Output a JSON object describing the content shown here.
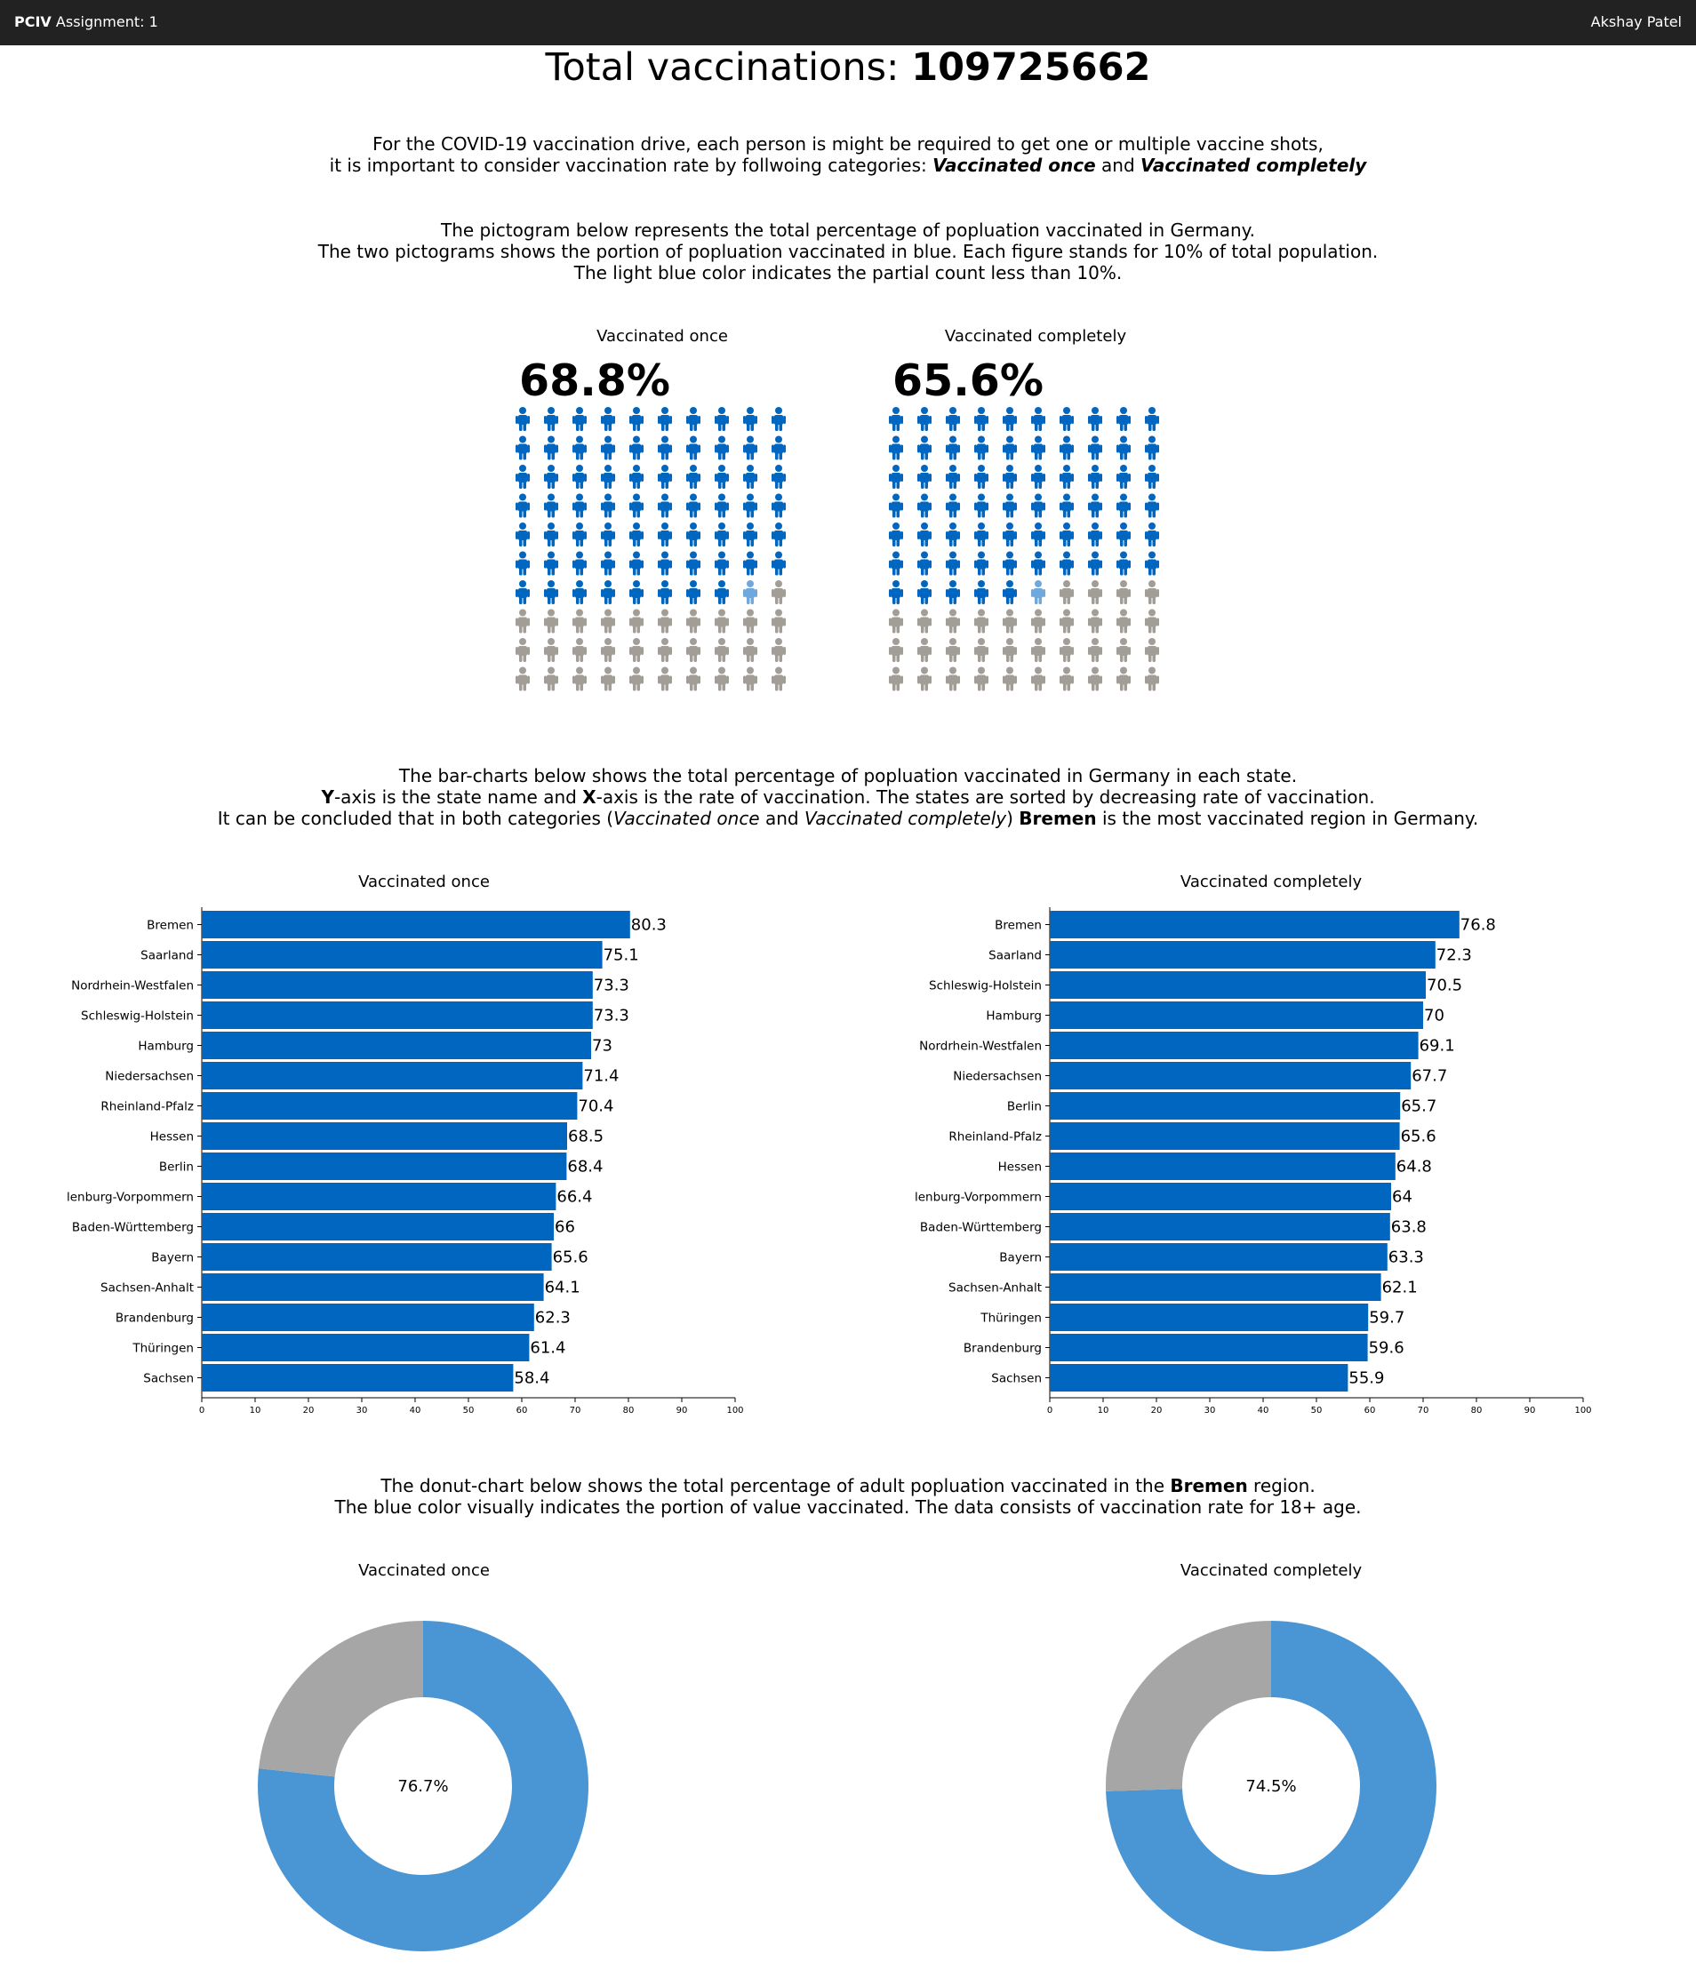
{
  "navbar": {
    "brand": "PCIV",
    "assignment": "Assignment: 1",
    "user": "Akshay Patel"
  },
  "title": {
    "prefix": "Total vaccinations: ",
    "value": "109725662"
  },
  "intro": {
    "line1": "For the COVID-19 vaccination drive, each person is might be required to get one or multiple vaccine shots,",
    "line2_prefix": "it is important to consider vaccination rate by follwoing categories: ",
    "cat1": "Vaccinated once",
    "and": " and ",
    "cat2": "Vaccinated completely"
  },
  "pictogram_text": {
    "line1": "The pictogram below represents the total percentage of popluation vaccinated in Germany.",
    "line2": "The two pictograms shows the portion of popluation vaccinated in blue. Each figure stands for 10% of total population.",
    "line3": "The light blue color indicates the partial count less than 10%."
  },
  "barchart_text": {
    "line1": "The bar-charts below shows the total percentage of popluation vaccinated in Germany in each state.",
    "line2_y": "Y",
    "line2_mid": "-axis is the state name and ",
    "line2_x": "X",
    "line2_end": "-axis is the rate of vaccination. The states are sorted by decreasing rate of vaccination.",
    "line3_a": "It can be concluded that in both categories (",
    "line3_b": "Vaccinated once",
    "line3_c": " and ",
    "line3_d": "Vaccinated completely",
    "line3_e": ") ",
    "line3_f": "Bremen",
    "line3_g": " is the most vaccinated region in Germany."
  },
  "donut_text": {
    "line1_a": "The donut-chart below shows the total percentage of adult popluation vaccinated in the ",
    "line1_b": "Bremen",
    "line1_c": " region.",
    "line2": "The blue color visually indicates the portion of value vaccinated. The data consists of vaccination rate for 18+ age."
  },
  "colors": {
    "vaccinated": "#0066c0",
    "partial": "#6fa8dc",
    "unvaccinated": "#a29e97",
    "bar": "#0066c0",
    "donut_blue": "#4a95d4",
    "donut_grey": "#a6a6a6"
  },
  "chart_data": [
    {
      "type": "pictogram",
      "title": "Vaccinated once",
      "value_label": "68.8%",
      "value": 68.8,
      "unit_per_icon": 1,
      "grid": [
        10,
        10
      ],
      "icon": "person-icon"
    },
    {
      "type": "pictogram",
      "title": "Vaccinated completely",
      "value_label": "65.6%",
      "value": 65.6,
      "unit_per_icon": 1,
      "grid": [
        10,
        10
      ],
      "icon": "person-icon"
    },
    {
      "type": "bar",
      "orientation": "horizontal",
      "title": "Vaccinated once",
      "categories": [
        "Bremen",
        "Saarland",
        "Nordrhein-Westfalen",
        "Schleswig-Holstein",
        "Hamburg",
        "Niedersachsen",
        "Rheinland-Pfalz",
        "Hessen",
        "Berlin",
        "Mecklenburg-Vorpommern",
        "Baden-Württemberg",
        "Bayern",
        "Sachsen-Anhalt",
        "Brandenburg",
        "Thüringen",
        "Sachsen"
      ],
      "values": [
        80.3,
        75.1,
        73.3,
        73.3,
        73,
        71.4,
        70.4,
        68.5,
        68.4,
        66.4,
        66,
        65.6,
        64.1,
        62.3,
        61.4,
        58.4
      ],
      "xlim": [
        0,
        100
      ],
      "xticks": [
        0,
        10,
        20,
        30,
        40,
        50,
        60,
        70,
        80,
        90,
        100
      ]
    },
    {
      "type": "bar",
      "orientation": "horizontal",
      "title": "Vaccinated completely",
      "categories": [
        "Bremen",
        "Saarland",
        "Schleswig-Holstein",
        "Hamburg",
        "Nordrhein-Westfalen",
        "Niedersachsen",
        "Berlin",
        "Rheinland-Pfalz",
        "Hessen",
        "Mecklenburg-Vorpommern",
        "Baden-Württemberg",
        "Bayern",
        "Sachsen-Anhalt",
        "Thüringen",
        "Brandenburg",
        "Sachsen"
      ],
      "values": [
        76.8,
        72.3,
        70.5,
        70,
        69.1,
        67.7,
        65.7,
        65.6,
        64.8,
        64,
        63.8,
        63.3,
        62.1,
        59.7,
        59.6,
        55.9
      ],
      "xlim": [
        0,
        100
      ],
      "xticks": [
        0,
        10,
        20,
        30,
        40,
        50,
        60,
        70,
        80,
        90,
        100
      ]
    },
    {
      "type": "pie",
      "title": "Vaccinated once",
      "center_label": "76.7%",
      "values": [
        76.7,
        23.3
      ]
    },
    {
      "type": "pie",
      "title": "Vaccinated completely",
      "center_label": "74.5%",
      "values": [
        74.5,
        25.5
      ]
    }
  ]
}
